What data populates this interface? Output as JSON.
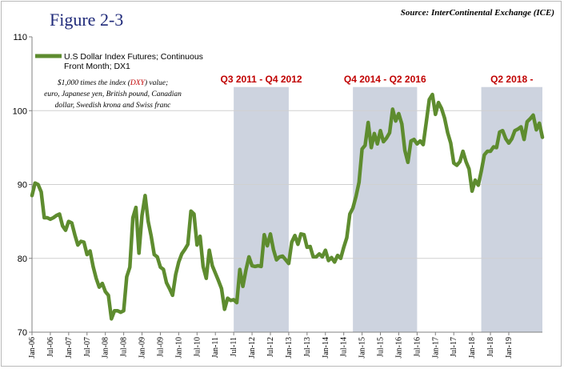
{
  "header": {
    "title": "Figure 2-3",
    "source": "Source: InterContinental  Exchange (ICE)"
  },
  "chart_data": {
    "type": "line",
    "ylim": [
      70,
      110
    ],
    "yticks": [
      70,
      80,
      90,
      100,
      110
    ],
    "xlim": [
      "2006-01",
      "2019-12"
    ],
    "xticks": [
      "Jan-06",
      "Jul-06",
      "Jan-07",
      "Jul-07",
      "Jan-08",
      "Jul-08",
      "Jan-09",
      "Jul-09",
      "Jan-10",
      "Jul-10",
      "Jan-11",
      "Jul-11",
      "Jan-12",
      "Jul-12",
      "Jan-13",
      "Jul-13",
      "Jan-14",
      "Jul-14",
      "Jan-15",
      "Jul-15",
      "Jan-16",
      "Jul-16",
      "Jan-17",
      "Jul-17",
      "Jan-18",
      "Jul-18",
      "Jan-19"
    ],
    "grid": {
      "horizontal": true,
      "vertical": false
    },
    "series": [
      {
        "name": "U.S Dollar Index Futures; Continuous Front Month; DX1",
        "color": "#5e8c2f",
        "points": [
          [
            "2006-01",
            88.5
          ],
          [
            "2006-02",
            90.2
          ],
          [
            "2006-03",
            90.0
          ],
          [
            "2006-04",
            89.0
          ],
          [
            "2006-05",
            85.5
          ],
          [
            "2006-06",
            85.5
          ],
          [
            "2006-07",
            85.3
          ],
          [
            "2006-08",
            85.5
          ],
          [
            "2006-09",
            85.8
          ],
          [
            "2006-10",
            86.0
          ],
          [
            "2006-11",
            84.4
          ],
          [
            "2006-12",
            83.8
          ],
          [
            "2007-01",
            85.0
          ],
          [
            "2007-02",
            84.8
          ],
          [
            "2007-03",
            83.2
          ],
          [
            "2007-04",
            81.8
          ],
          [
            "2007-05",
            82.3
          ],
          [
            "2007-06",
            82.2
          ],
          [
            "2007-07",
            80.5
          ],
          [
            "2007-08",
            81.0
          ],
          [
            "2007-09",
            78.9
          ],
          [
            "2007-10",
            77.3
          ],
          [
            "2007-11",
            76.1
          ],
          [
            "2007-12",
            76.6
          ],
          [
            "2008-01",
            75.5
          ],
          [
            "2008-02",
            75.0
          ],
          [
            "2008-03",
            71.8
          ],
          [
            "2008-04",
            72.9
          ],
          [
            "2008-05",
            72.9
          ],
          [
            "2008-06",
            72.7
          ],
          [
            "2008-07",
            72.9
          ],
          [
            "2008-08",
            77.5
          ],
          [
            "2008-09",
            78.8
          ],
          [
            "2008-10",
            85.5
          ],
          [
            "2008-11",
            86.9
          ],
          [
            "2008-12",
            80.7
          ],
          [
            "2009-01",
            85.8
          ],
          [
            "2009-02",
            88.5
          ],
          [
            "2009-03",
            85.0
          ],
          [
            "2009-04",
            83.0
          ],
          [
            "2009-05",
            80.5
          ],
          [
            "2009-06",
            80.2
          ],
          [
            "2009-07",
            78.8
          ],
          [
            "2009-08",
            78.5
          ],
          [
            "2009-09",
            76.7
          ],
          [
            "2009-10",
            75.9
          ],
          [
            "2009-11",
            75.0
          ],
          [
            "2009-12",
            77.8
          ],
          [
            "2010-01",
            79.5
          ],
          [
            "2010-02",
            80.6
          ],
          [
            "2010-03",
            81.2
          ],
          [
            "2010-04",
            81.9
          ],
          [
            "2010-05",
            86.4
          ],
          [
            "2010-06",
            86.0
          ],
          [
            "2010-07",
            81.8
          ],
          [
            "2010-08",
            83.0
          ],
          [
            "2010-09",
            78.9
          ],
          [
            "2010-10",
            77.3
          ],
          [
            "2010-11",
            81.1
          ],
          [
            "2010-12",
            79.0
          ],
          [
            "2011-01",
            78.0
          ],
          [
            "2011-02",
            77.0
          ],
          [
            "2011-03",
            75.9
          ],
          [
            "2011-04",
            73.1
          ],
          [
            "2011-05",
            74.6
          ],
          [
            "2011-06",
            74.3
          ],
          [
            "2011-07",
            74.4
          ],
          [
            "2011-08",
            74.0
          ],
          [
            "2011-09",
            78.5
          ],
          [
            "2011-10",
            76.2
          ],
          [
            "2011-11",
            78.4
          ],
          [
            "2011-12",
            80.2
          ],
          [
            "2012-01",
            79.0
          ],
          [
            "2012-02",
            78.9
          ],
          [
            "2012-03",
            79.0
          ],
          [
            "2012-04",
            78.9
          ],
          [
            "2012-05",
            83.2
          ],
          [
            "2012-06",
            81.7
          ],
          [
            "2012-07",
            83.3
          ],
          [
            "2012-08",
            81.2
          ],
          [
            "2012-09",
            79.8
          ],
          [
            "2012-10",
            80.2
          ],
          [
            "2012-11",
            80.3
          ],
          [
            "2012-12",
            79.8
          ],
          [
            "2013-01",
            79.3
          ],
          [
            "2013-02",
            82.2
          ],
          [
            "2013-03",
            83.1
          ],
          [
            "2013-04",
            81.9
          ],
          [
            "2013-05",
            83.3
          ],
          [
            "2013-06",
            83.2
          ],
          [
            "2013-07",
            81.5
          ],
          [
            "2013-08",
            81.6
          ],
          [
            "2013-09",
            80.2
          ],
          [
            "2013-10",
            80.2
          ],
          [
            "2013-11",
            80.6
          ],
          [
            "2013-12",
            80.2
          ],
          [
            "2014-01",
            81.1
          ],
          [
            "2014-02",
            79.7
          ],
          [
            "2014-03",
            80.1
          ],
          [
            "2014-04",
            79.5
          ],
          [
            "2014-05",
            80.4
          ],
          [
            "2014-06",
            80.0
          ],
          [
            "2014-07",
            81.5
          ],
          [
            "2014-08",
            82.8
          ],
          [
            "2014-09",
            86.0
          ],
          [
            "2014-10",
            86.8
          ],
          [
            "2014-11",
            88.4
          ],
          [
            "2014-12",
            90.3
          ],
          [
            "2015-01",
            94.8
          ],
          [
            "2015-02",
            95.3
          ],
          [
            "2015-03",
            98.4
          ],
          [
            "2015-04",
            95.0
          ],
          [
            "2015-05",
            96.9
          ],
          [
            "2015-06",
            95.5
          ],
          [
            "2015-07",
            97.3
          ],
          [
            "2015-08",
            95.8
          ],
          [
            "2015-09",
            96.3
          ],
          [
            "2015-10",
            97.0
          ],
          [
            "2015-11",
            100.2
          ],
          [
            "2015-12",
            98.6
          ],
          [
            "2016-01",
            99.6
          ],
          [
            "2016-02",
            98.2
          ],
          [
            "2016-03",
            94.6
          ],
          [
            "2016-04",
            93.0
          ],
          [
            "2016-05",
            95.9
          ],
          [
            "2016-06",
            96.1
          ],
          [
            "2016-07",
            95.5
          ],
          [
            "2016-08",
            95.9
          ],
          [
            "2016-09",
            95.4
          ],
          [
            "2016-10",
            98.4
          ],
          [
            "2016-11",
            101.5
          ],
          [
            "2016-12",
            102.2
          ],
          [
            "2017-01",
            99.5
          ],
          [
            "2017-02",
            101.1
          ],
          [
            "2017-03",
            100.3
          ],
          [
            "2017-04",
            99.0
          ],
          [
            "2017-05",
            97.0
          ],
          [
            "2017-06",
            95.6
          ],
          [
            "2017-07",
            92.9
          ],
          [
            "2017-08",
            92.6
          ],
          [
            "2017-09",
            93.1
          ],
          [
            "2017-10",
            94.5
          ],
          [
            "2017-11",
            93.1
          ],
          [
            "2017-12",
            92.1
          ],
          [
            "2018-01",
            89.1
          ],
          [
            "2018-02",
            90.6
          ],
          [
            "2018-03",
            89.9
          ],
          [
            "2018-04",
            91.8
          ],
          [
            "2018-05",
            94.0
          ],
          [
            "2018-06",
            94.5
          ],
          [
            "2018-07",
            94.5
          ],
          [
            "2018-08",
            95.1
          ],
          [
            "2018-09",
            95.0
          ],
          [
            "2018-10",
            97.1
          ],
          [
            "2018-11",
            97.3
          ],
          [
            "2018-12",
            96.2
          ],
          [
            "2019-01",
            95.6
          ],
          [
            "2019-02",
            96.2
          ],
          [
            "2019-03",
            97.3
          ],
          [
            "2019-04",
            97.5
          ],
          [
            "2019-05",
            97.8
          ],
          [
            "2019-06",
            96.1
          ],
          [
            "2019-07",
            98.5
          ],
          [
            "2019-08",
            98.9
          ],
          [
            "2019-09",
            99.4
          ],
          [
            "2019-10",
            97.4
          ],
          [
            "2019-11",
            98.3
          ],
          [
            "2019-12",
            96.4
          ]
        ]
      }
    ],
    "shaded_periods": [
      {
        "label": "Q3 2011 - Q4 2012",
        "start": "2011-07",
        "end": "2013-01",
        "color": "#cdd3df"
      },
      {
        "label": "Q4 2014 - Q2 2016",
        "start": "2014-10",
        "end": "2016-07",
        "color": "#cdd3df"
      },
      {
        "label": "Q2 2018 -",
        "start": "2018-04",
        "end": "2019-12",
        "color": "#cdd3df"
      }
    ],
    "legend": {
      "position": "top-left",
      "label_line1": "U.S Dollar Index Futures; Continuous",
      "label_line2": "Front Month; DX1"
    },
    "note": {
      "line1_pre": "$1,000 times the index (",
      "line1_hl": "DXY",
      "line1_post": ") value;",
      "line2": "euro, Japanese yen, British pound, Canadian",
      "line3": "dollar, Swedish krona and Swiss franc",
      "highlight_color": "#c00000"
    }
  }
}
